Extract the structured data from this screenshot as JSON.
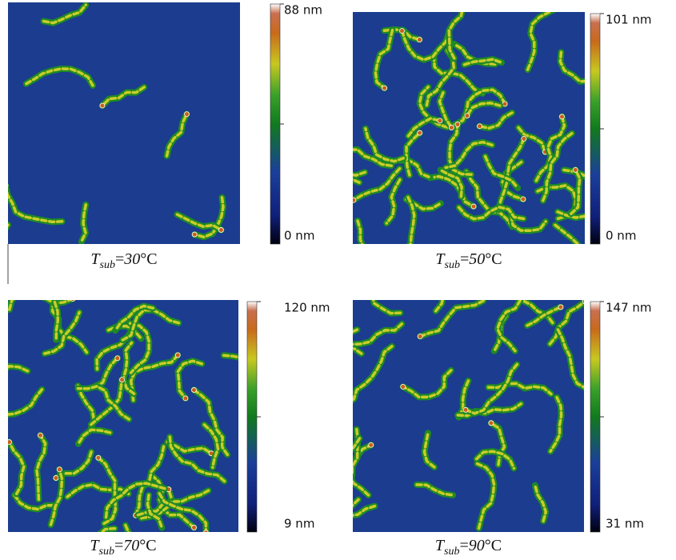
{
  "panels": [
    {
      "colorbar": {
        "max_label": "88 nm",
        "min_label": "0 nm"
      },
      "caption": {
        "symbol": "T",
        "subscript": "sub",
        "equals": "=",
        "temperature": "30",
        "unit": "°C"
      }
    },
    {
      "colorbar": {
        "max_label": "101 nm",
        "min_label": "0 nm"
      },
      "caption": {
        "symbol": "T",
        "subscript": "sub",
        "equals": "=",
        "temperature": "50",
        "unit": "°C"
      }
    },
    {
      "colorbar": {
        "max_label": "120 nm",
        "min_label": "9 nm"
      },
      "caption": {
        "symbol": "T",
        "subscript": "sub",
        "equals": "=",
        "temperature": "70",
        "unit": "°C"
      }
    },
    {
      "colorbar": {
        "max_label": "147 nm",
        "min_label": "31 nm"
      },
      "caption": {
        "symbol": "T",
        "subscript": "sub",
        "equals": "=",
        "temperature": "90",
        "unit": "°C"
      }
    }
  ]
}
